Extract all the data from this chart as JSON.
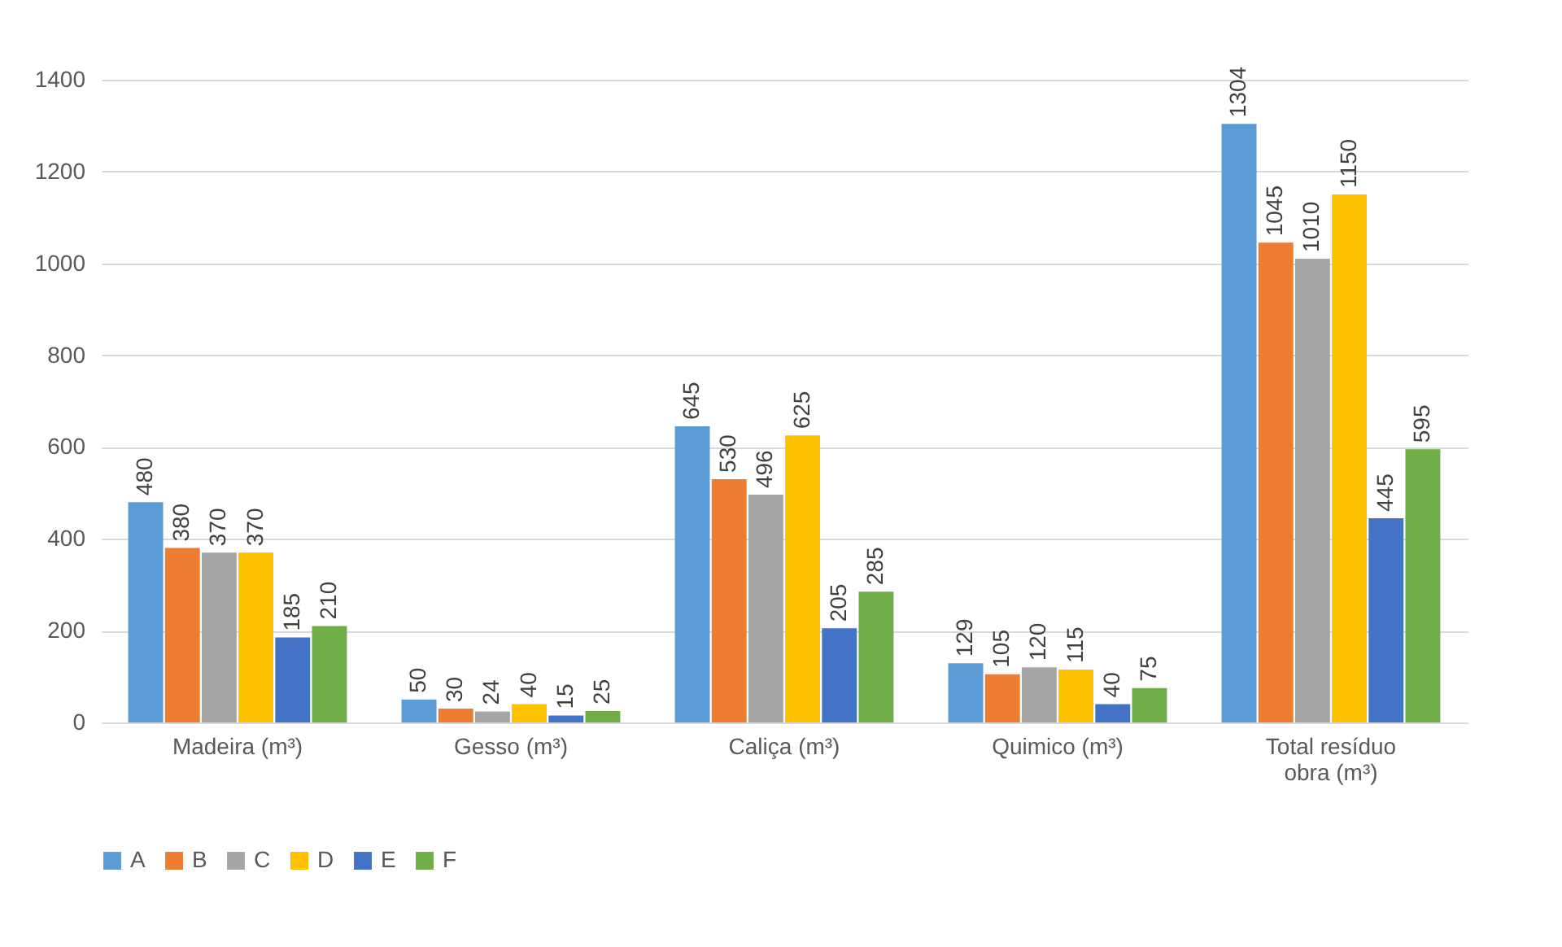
{
  "chart_data": {
    "type": "bar",
    "categories": [
      "Madeira (m³)",
      "Gesso (m³)",
      "Caliça (m³)",
      "Quimico (m³)",
      "Total resíduo obra (m³)"
    ],
    "series": [
      {
        "name": "A",
        "color": "#5b9bd5",
        "values": [
          480,
          50,
          645,
          129,
          1304
        ]
      },
      {
        "name": "B",
        "color": "#ed7d31",
        "values": [
          380,
          30,
          530,
          105,
          1045
        ]
      },
      {
        "name": "C",
        "color": "#a5a5a5",
        "values": [
          370,
          24,
          496,
          120,
          1010
        ]
      },
      {
        "name": "D",
        "color": "#ffc000",
        "values": [
          370,
          40,
          625,
          115,
          1150
        ]
      },
      {
        "name": "E",
        "color": "#4472c4",
        "values": [
          185,
          15,
          205,
          40,
          445
        ]
      },
      {
        "name": "F",
        "color": "#70ad47",
        "values": [
          210,
          25,
          285,
          75,
          595
        ]
      }
    ],
    "ylim": [
      0,
      1400
    ],
    "yticks": [
      0,
      200,
      400,
      600,
      800,
      1000,
      1200,
      1400
    ],
    "grid": "y",
    "legend": "bottom",
    "data_labels": true
  }
}
